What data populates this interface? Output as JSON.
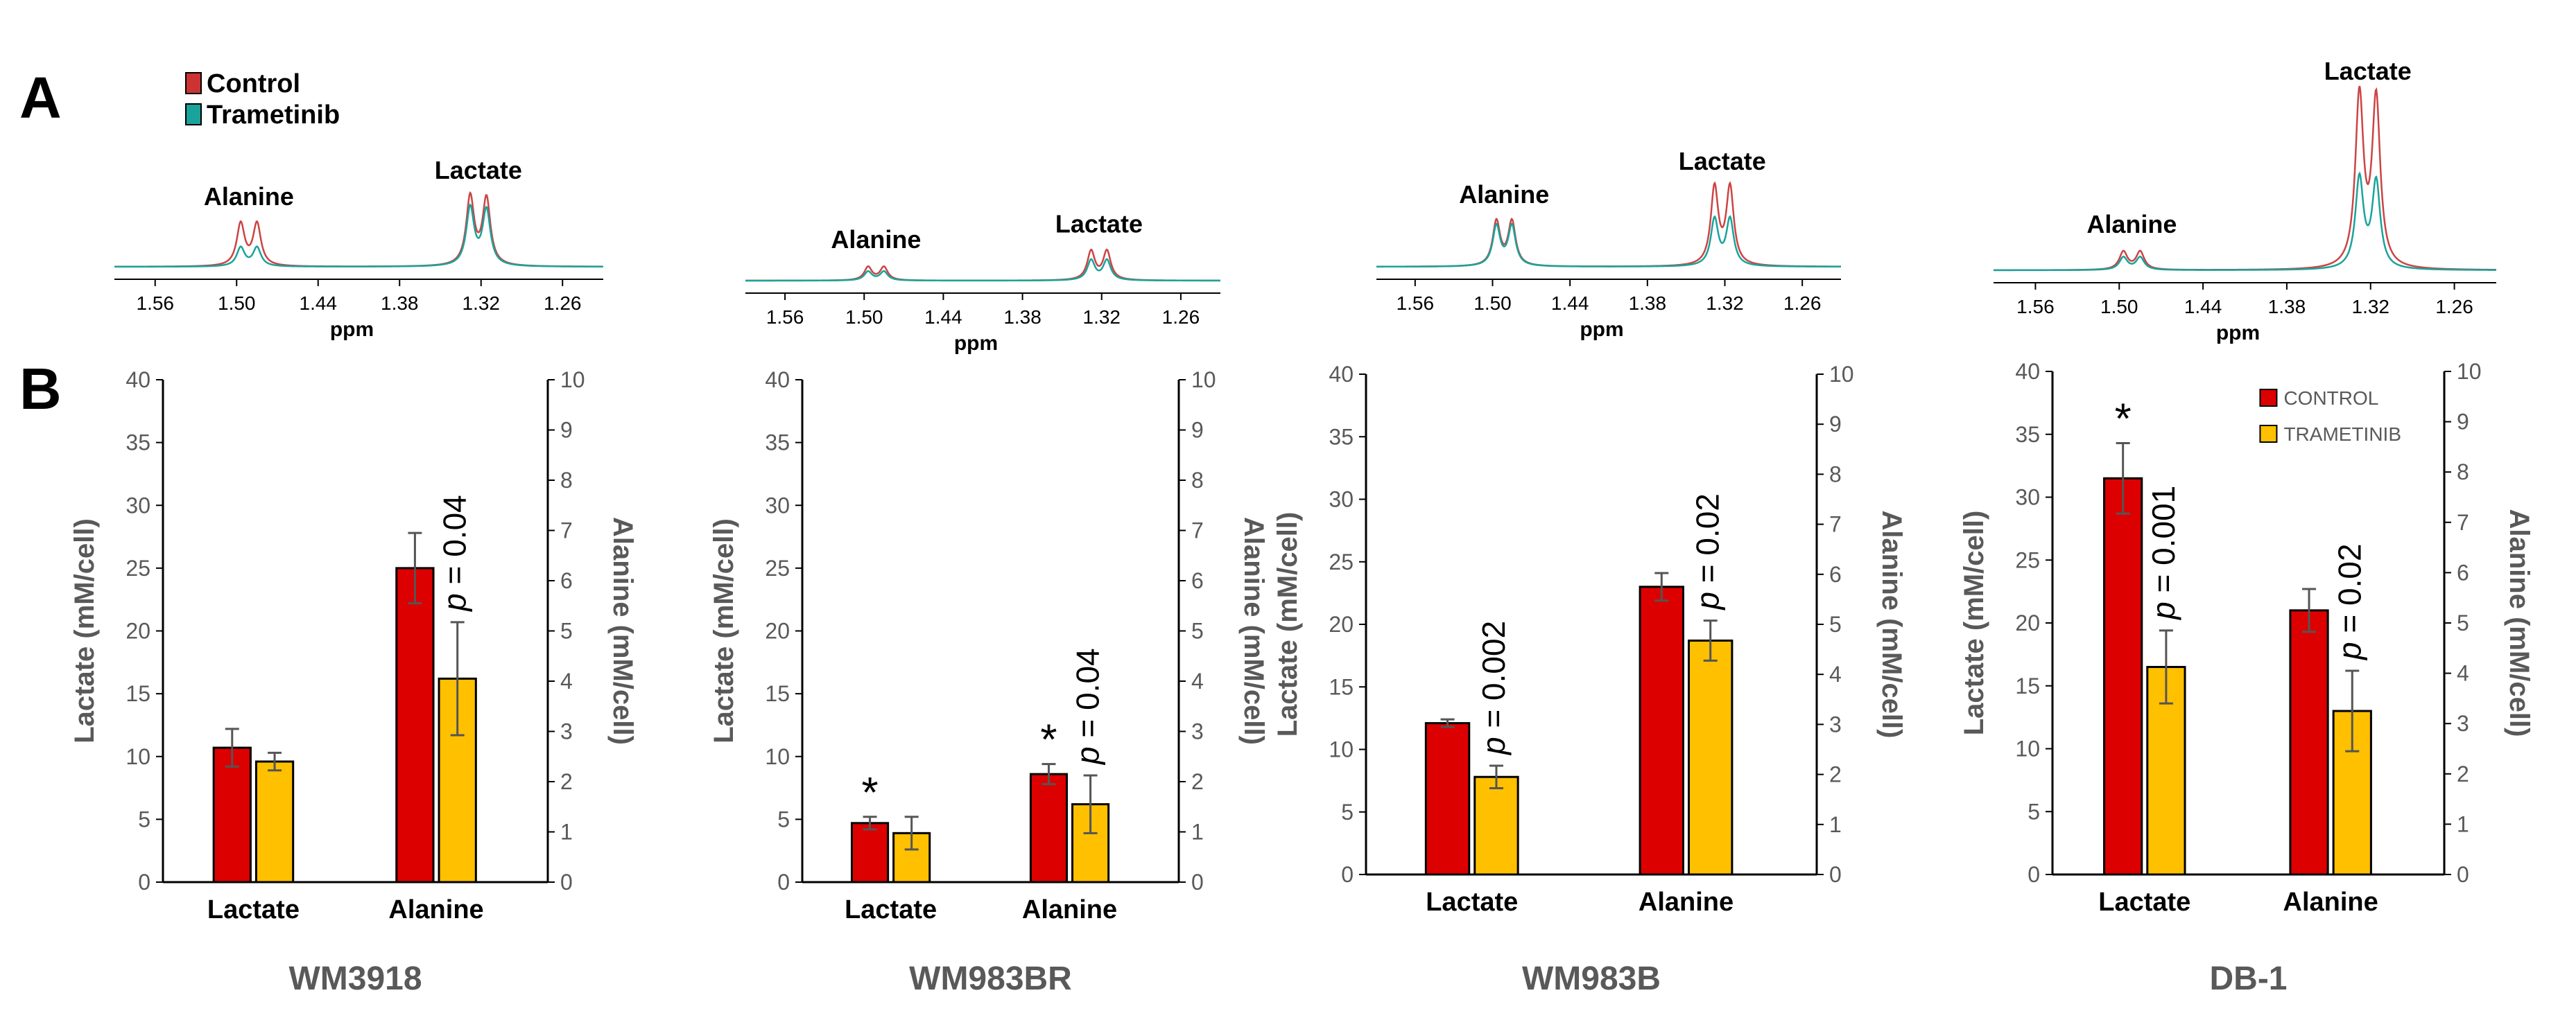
{
  "panel_labels": [
    "A",
    "B"
  ],
  "colors": {
    "control_spectrum": "#cc4444",
    "trametinib_spectrum": "#1aa39a",
    "control_bar": "#dd0000",
    "trametinib_bar": "#ffc000",
    "axis_text": "#595959",
    "bold_text": "#000000"
  },
  "spectra_legend": [
    {
      "label": "Control",
      "color": "#cc3333"
    },
    {
      "label": "Trametinib",
      "color": "#1aa39a"
    }
  ],
  "bar_legend": [
    {
      "label": "CONTROL",
      "color": "#dd0000"
    },
    {
      "label": "TRAMETINIB",
      "color": "#ffc000"
    }
  ],
  "chart_data": [
    {
      "type": "line",
      "panel": "A",
      "cell_line": "WM3918",
      "xlabel": "ppm",
      "x_ticks": [
        "1.56",
        "1.50",
        "1.44",
        "1.38",
        "1.32",
        "1.26"
      ],
      "xlim": [
        1.59,
        1.23
      ],
      "peak_labels": [
        "Alanine",
        "Lactate"
      ],
      "series": [
        {
          "name": "Control",
          "peaks": [
            {
              "ppm": 1.497,
              "height": 0.38
            },
            {
              "ppm": 1.485,
              "height": 0.38
            },
            {
              "ppm": 1.328,
              "height": 0.62
            },
            {
              "ppm": 1.316,
              "height": 0.6
            }
          ]
        },
        {
          "name": "Trametinib",
          "peaks": [
            {
              "ppm": 1.497,
              "height": 0.17
            },
            {
              "ppm": 1.485,
              "height": 0.17
            },
            {
              "ppm": 1.328,
              "height": 0.52
            },
            {
              "ppm": 1.316,
              "height": 0.5
            }
          ]
        }
      ]
    },
    {
      "type": "line",
      "panel": "A",
      "cell_line": "WM983BR",
      "xlabel": "ppm",
      "x_ticks": [
        "1.56",
        "1.50",
        "1.44",
        "1.38",
        "1.32",
        "1.26"
      ],
      "xlim": [
        1.59,
        1.23
      ],
      "peak_labels": [
        "Alanine",
        "Lactate"
      ],
      "series": [
        {
          "name": "Control",
          "peaks": [
            {
              "ppm": 1.497,
              "height": 0.12
            },
            {
              "ppm": 1.485,
              "height": 0.12
            },
            {
              "ppm": 1.328,
              "height": 0.26
            },
            {
              "ppm": 1.316,
              "height": 0.26
            }
          ]
        },
        {
          "name": "Trametinib",
          "peaks": [
            {
              "ppm": 1.497,
              "height": 0.08
            },
            {
              "ppm": 1.485,
              "height": 0.08
            },
            {
              "ppm": 1.328,
              "height": 0.18
            },
            {
              "ppm": 1.316,
              "height": 0.18
            }
          ]
        }
      ]
    },
    {
      "type": "line",
      "panel": "A",
      "cell_line": "WM983B",
      "xlabel": "ppm",
      "x_ticks": [
        "1.56",
        "1.50",
        "1.44",
        "1.38",
        "1.32",
        "1.26"
      ],
      "xlim": [
        1.59,
        1.23
      ],
      "peak_labels": [
        "Alanine",
        "Lactate"
      ],
      "series": [
        {
          "name": "Control",
          "peaks": [
            {
              "ppm": 1.497,
              "height": 0.4
            },
            {
              "ppm": 1.485,
              "height": 0.4
            },
            {
              "ppm": 1.328,
              "height": 0.7
            },
            {
              "ppm": 1.316,
              "height": 0.7
            }
          ]
        },
        {
          "name": "Trametinib",
          "peaks": [
            {
              "ppm": 1.497,
              "height": 0.36
            },
            {
              "ppm": 1.485,
              "height": 0.36
            },
            {
              "ppm": 1.328,
              "height": 0.42
            },
            {
              "ppm": 1.316,
              "height": 0.42
            }
          ]
        }
      ]
    },
    {
      "type": "line",
      "panel": "A",
      "cell_line": "DB-1",
      "xlabel": "ppm",
      "x_ticks": [
        "1.56",
        "1.50",
        "1.44",
        "1.38",
        "1.32",
        "1.26"
      ],
      "xlim": [
        1.59,
        1.23
      ],
      "peak_labels": [
        "Alanine",
        "Lactate"
      ],
      "series": [
        {
          "name": "Control",
          "peaks": [
            {
              "ppm": 1.497,
              "height": 0.1
            },
            {
              "ppm": 1.485,
              "height": 0.1
            },
            {
              "ppm": 1.328,
              "height": 0.95
            },
            {
              "ppm": 1.316,
              "height": 0.93
            }
          ]
        },
        {
          "name": "Trametinib",
          "peaks": [
            {
              "ppm": 1.497,
              "height": 0.07
            },
            {
              "ppm": 1.485,
              "height": 0.07
            },
            {
              "ppm": 1.328,
              "height": 0.5
            },
            {
              "ppm": 1.316,
              "height": 0.48
            }
          ]
        }
      ]
    },
    {
      "type": "bar",
      "panel": "B",
      "title": "WM3918",
      "categories": [
        "Lactate",
        "Alanine"
      ],
      "ylabel": "Lactate (mM/cell)",
      "y2label": "Alanine (mM/cell)",
      "ylim": [
        0,
        40
      ],
      "y2lim": [
        0,
        10
      ],
      "y_ticks": [
        "0",
        "5",
        "10",
        "15",
        "20",
        "25",
        "30",
        "35",
        "40"
      ],
      "y2_ticks": [
        "0",
        "1",
        "2",
        "3",
        "4",
        "5",
        "6",
        "7",
        "8",
        "9",
        "10"
      ],
      "series": [
        {
          "name": "CONTROL",
          "values": [
            10.7,
            25.0
          ],
          "errors": [
            1.5,
            2.8
          ]
        },
        {
          "name": "TRAMETINIB",
          "values": [
            9.6,
            16.2
          ],
          "errors": [
            0.7,
            4.5
          ]
        }
      ],
      "annotations": [
        {
          "category": "Alanine",
          "text": "p = 0.04",
          "italic_part": "p",
          "value_part": " = 0.04"
        }
      ]
    },
    {
      "type": "bar",
      "panel": "B",
      "title": "WM983BR",
      "categories": [
        "Lactate",
        "Alanine"
      ],
      "ylabel": "Lactate (mM/cell)",
      "y2label": "Alanine (mM/cell)",
      "ylim": [
        0,
        40
      ],
      "y2lim": [
        0,
        10
      ],
      "y_ticks": [
        "0",
        "5",
        "10",
        "15",
        "20",
        "25",
        "30",
        "35",
        "40"
      ],
      "y2_ticks": [
        "0",
        "1",
        "2",
        "3",
        "4",
        "5",
        "6",
        "7",
        "8",
        "9",
        "10"
      ],
      "series": [
        {
          "name": "CONTROL",
          "values": [
            4.7,
            8.6
          ],
          "errors": [
            0.5,
            0.8
          ]
        },
        {
          "name": "TRAMETINIB",
          "values": [
            3.9,
            6.2
          ],
          "errors": [
            1.3,
            2.3
          ]
        }
      ],
      "annotations": [
        {
          "category": "Lactate",
          "text": "*"
        },
        {
          "category": "Alanine",
          "text": "*"
        },
        {
          "category": "Alanine",
          "text": "p = 0.04",
          "italic_part": "p",
          "value_part": " = 0.04"
        }
      ]
    },
    {
      "type": "bar",
      "panel": "B",
      "title": "WM983B",
      "categories": [
        "Lactate",
        "Alanine"
      ],
      "ylabel": "Lactate (mM/cell)",
      "y2label": "Alanine (mM/cell)",
      "ylim": [
        0,
        40
      ],
      "y2lim": [
        0,
        10
      ],
      "y_ticks": [
        "0",
        "5",
        "10",
        "15",
        "20",
        "25",
        "30",
        "35",
        "40"
      ],
      "y2_ticks": [
        "0",
        "1",
        "2",
        "3",
        "4",
        "5",
        "6",
        "7",
        "8",
        "9",
        "10"
      ],
      "series": [
        {
          "name": "CONTROL",
          "values": [
            12.1,
            23.0
          ],
          "errors": [
            0.3,
            1.1
          ]
        },
        {
          "name": "TRAMETINIB",
          "values": [
            7.8,
            18.7
          ],
          "errors": [
            0.9,
            1.6
          ]
        }
      ],
      "annotations": [
        {
          "category": "Lactate",
          "text": "p = 0.002",
          "italic_part": "p",
          "value_part": " = 0.002"
        },
        {
          "category": "Alanine",
          "text": "p = 0.02",
          "italic_part": "p",
          "value_part": " = 0.02"
        }
      ]
    },
    {
      "type": "bar",
      "panel": "B",
      "title": "DB-1",
      "categories": [
        "Lactate",
        "Alanine"
      ],
      "ylabel": "Lactate (mM/cell)",
      "y2label": "Alanine (mM/cell)",
      "ylim": [
        0,
        40
      ],
      "y2lim": [
        0,
        10
      ],
      "y_ticks": [
        "0",
        "5",
        "10",
        "15",
        "20",
        "25",
        "30",
        "35",
        "40"
      ],
      "y2_ticks": [
        "0",
        "1",
        "2",
        "3",
        "4",
        "5",
        "6",
        "7",
        "8",
        "9",
        "10"
      ],
      "legend": "top-right",
      "series": [
        {
          "name": "CONTROL",
          "values": [
            31.5,
            21.0
          ],
          "errors": [
            2.8,
            1.7
          ]
        },
        {
          "name": "TRAMETINIB",
          "values": [
            16.5,
            13.0
          ],
          "errors": [
            2.9,
            3.2
          ]
        }
      ],
      "annotations": [
        {
          "category": "Lactate",
          "text": "*"
        },
        {
          "category": "Lactate",
          "text": "p = 0.001",
          "italic_part": "p",
          "value_part": " = 0.001"
        },
        {
          "category": "Alanine",
          "text": "p = 0.02",
          "italic_part": "p",
          "value_part": " = 0.02"
        }
      ]
    }
  ]
}
